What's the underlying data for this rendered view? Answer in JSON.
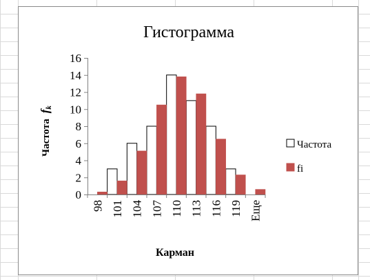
{
  "chart_data": {
    "type": "bar",
    "title": "Гистограмма",
    "xlabel": "Карман",
    "ylabel_main": "Частота",
    "ylabel_sym": "f",
    "ylabel_sub": "k",
    "categories": [
      "98",
      "101",
      "104",
      "107",
      "110",
      "113",
      "116",
      "119",
      "Еще"
    ],
    "ylim": [
      0,
      16
    ],
    "yticks": [
      "0",
      "2",
      "4",
      "6",
      "8",
      "10",
      "12",
      "14",
      "16"
    ],
    "grid": false,
    "legend_position": "right",
    "series": [
      {
        "name": "Частота",
        "values": [
          0,
          3,
          6,
          8,
          14,
          11,
          8,
          3,
          0
        ],
        "color": "#ffffff",
        "stroke": "#000000"
      },
      {
        "name": "fi",
        "values": [
          0.3,
          1.6,
          5.1,
          10.5,
          13.8,
          11.8,
          6.5,
          2.3,
          0.6
        ],
        "color": "#c0504d",
        "stroke": "#c0504d"
      }
    ]
  }
}
